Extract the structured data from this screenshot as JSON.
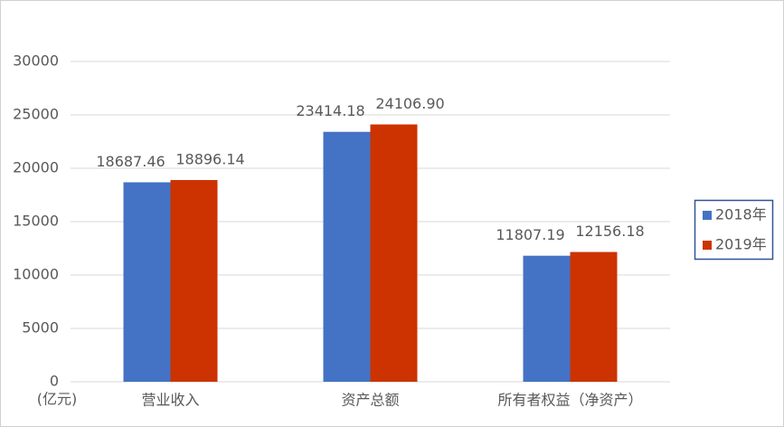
{
  "chart_data": {
    "type": "bar",
    "ylabel": "(亿元)",
    "categories": [
      "营业收入",
      "资产总额",
      "所有者权益（净资产）"
    ],
    "series": [
      {
        "name": "2018年",
        "color": "#4472c4",
        "values": [
          18687.46,
          23414.18,
          11807.19
        ],
        "value_labels": [
          "18687.46",
          "23414.18",
          "11807.19"
        ]
      },
      {
        "name": "2019年",
        "color": "#cc3300",
        "values": [
          18896.14,
          24106.9,
          12156.18
        ],
        "value_labels": [
          "18896.14",
          "24106.90",
          "12156.18"
        ]
      }
    ],
    "ylim": [
      0,
      30000
    ],
    "yticks": [
      0,
      5000,
      10000,
      15000,
      20000,
      25000,
      30000
    ],
    "grid": true,
    "legend": "right"
  }
}
